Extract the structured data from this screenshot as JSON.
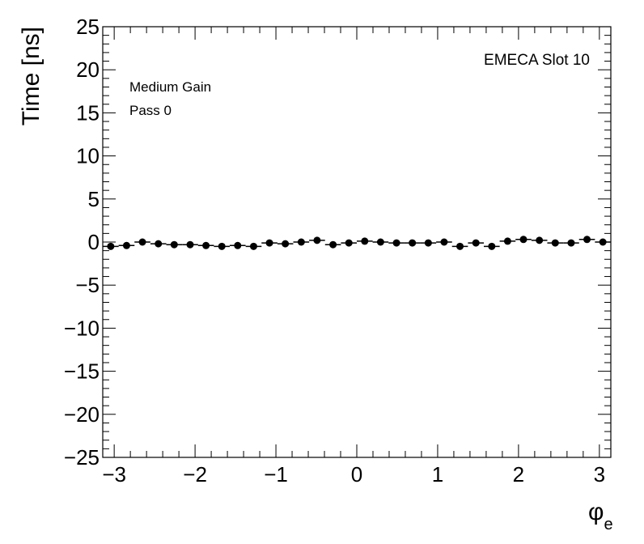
{
  "chart_data": {
    "type": "scatter",
    "title": "",
    "xlabel": "φ",
    "xlabel_sub": "e",
    "ylabel": "Time [ns]",
    "xlim": [
      -3.1416,
      3.1416
    ],
    "ylim": [
      -25,
      25
    ],
    "xticks": [
      -3,
      -2,
      -1,
      0,
      1,
      2,
      3
    ],
    "xtick_labels": [
      "−3",
      "−2",
      "−1",
      "0",
      "1",
      "2",
      "3"
    ],
    "yticks": [
      25,
      20,
      15,
      10,
      5,
      0,
      -5,
      -10,
      -15,
      -20,
      -25
    ],
    "ytick_labels": [
      "25",
      "20",
      "15",
      "10",
      "5",
      "0",
      "−5",
      "−10",
      "−15",
      "−20",
      "−25"
    ],
    "grid": false,
    "annotations": {
      "slot": "EMECA Slot 10",
      "gain": "Medium Gain",
      "pass": "Pass 0"
    },
    "bin_half_width": 0.0982,
    "series": [
      {
        "marker_color": "#000000",
        "x": [
          -3.043,
          -2.847,
          -2.651,
          -2.454,
          -2.258,
          -2.061,
          -1.865,
          -1.669,
          -1.473,
          -1.276,
          -1.08,
          -0.884,
          -0.687,
          -0.491,
          -0.294,
          -0.098,
          0.098,
          0.294,
          0.491,
          0.687,
          0.884,
          1.08,
          1.276,
          1.473,
          1.669,
          1.865,
          2.061,
          2.258,
          2.454,
          2.651,
          2.847,
          3.043
        ],
        "y": [
          -0.5,
          -0.4,
          0.0,
          -0.2,
          -0.3,
          -0.3,
          -0.4,
          -0.5,
          -0.4,
          -0.5,
          -0.1,
          -0.2,
          0.0,
          0.2,
          -0.3,
          -0.1,
          0.1,
          0.0,
          -0.1,
          -0.1,
          -0.1,
          0.0,
          -0.5,
          -0.1,
          -0.5,
          0.1,
          0.3,
          0.2,
          -0.1,
          -0.1,
          0.3,
          0.0
        ]
      }
    ]
  }
}
